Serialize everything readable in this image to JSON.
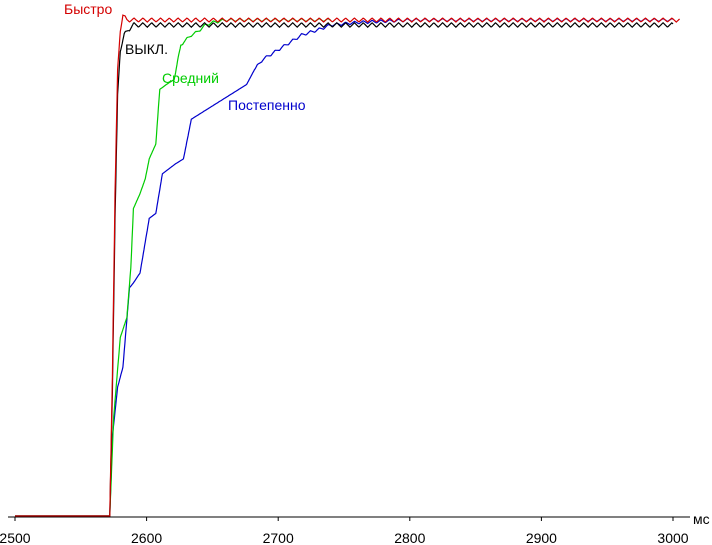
{
  "chart_data": {
    "type": "line",
    "title": "",
    "xlabel": "",
    "ylabel": "",
    "x_unit": "мс",
    "xlim": [
      2500,
      3000
    ],
    "ylim": [
      0,
      100
    ],
    "x_ticks": [
      "2500",
      "2600",
      "2700",
      "2800",
      "2900",
      "3000"
    ],
    "grid": false,
    "legend": "inline labels",
    "series": [
      {
        "name": "Быстро",
        "color": "#d40000",
        "x": [
          2500,
          2572,
          2574,
          2576,
          2578,
          2580,
          2582,
          2585,
          3005
        ],
        "y": [
          0,
          0,
          28,
          65,
          90,
          98,
          101,
          100,
          100
        ],
        "ripple": 0.8,
        "ripple_period": 6.7
      },
      {
        "name": "ВЫКЛ.",
        "color": "#000000",
        "x": [
          2500,
          2572,
          2574,
          2576,
          2578,
          2580,
          2583,
          2586,
          2590,
          3000
        ],
        "y": [
          0,
          0,
          25,
          60,
          85,
          94,
          97,
          98,
          99,
          99
        ],
        "ripple": 0.9,
        "ripple_period": 6.7
      },
      {
        "name": "Средний",
        "color": "#00cc00",
        "x": [
          2500,
          2572,
          2575,
          2580,
          2585,
          2588,
          2590,
          2595,
          2599,
          2602,
          2607,
          2610,
          2615,
          2621,
          2626,
          2630,
          2634,
          2638,
          2645,
          2650,
          2660,
          2700,
          2740
        ],
        "y": [
          0,
          0,
          20,
          36,
          40,
          50,
          62,
          65,
          68,
          72,
          75,
          86,
          87,
          88,
          95,
          96,
          97,
          97.5,
          99,
          99.5,
          100,
          100,
          100
        ],
        "ripple": 0.6,
        "ripple_period": 6.7
      },
      {
        "name": "Постепенно",
        "color": "#0000cc",
        "x": [
          2500,
          2572,
          2574,
          2578,
          2582,
          2587,
          2590,
          2595,
          2602,
          2607,
          2612,
          2617,
          2622,
          2628,
          2634,
          2640,
          2646,
          2652,
          2658,
          2664,
          2670,
          2676,
          2682,
          2688,
          2694,
          2700,
          2706,
          2712,
          2718,
          2724,
          2730,
          2735,
          2740,
          2760,
          2800,
          2850,
          2905,
          3000
        ],
        "y": [
          0,
          0,
          16,
          26,
          30,
          46,
          47,
          49,
          60,
          61,
          69,
          70,
          71,
          72,
          80,
          81,
          82,
          83,
          84,
          85,
          86,
          87,
          90,
          92,
          93,
          94,
          95,
          96,
          97,
          97.5,
          98,
          98.5,
          99,
          99.5,
          100,
          100,
          100,
          100
        ],
        "ripple": 0.6,
        "ripple_period": 6.7
      }
    ]
  }
}
